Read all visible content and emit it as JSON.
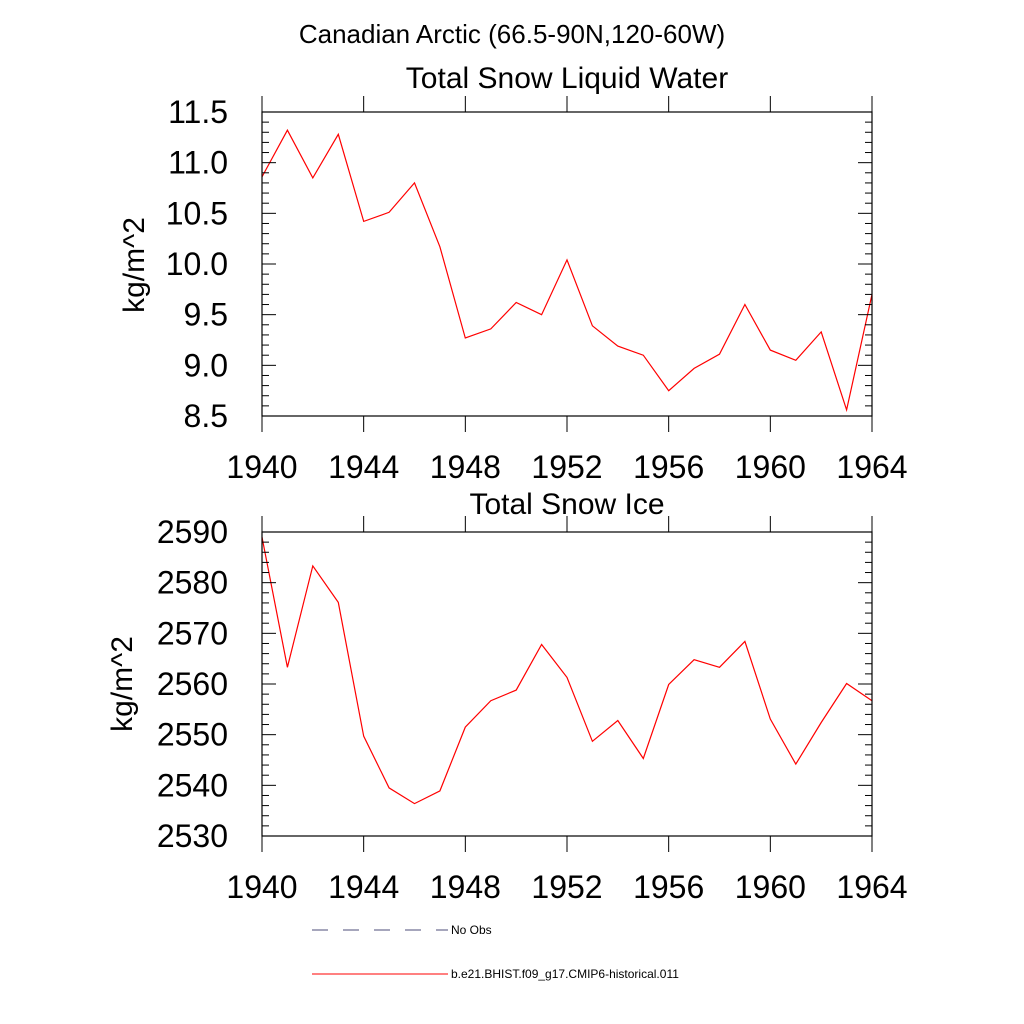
{
  "figure": {
    "title": "Canadian Arctic (66.5-90N,120-60W)"
  },
  "chart_data": [
    {
      "type": "line",
      "title": "Total Snow Liquid Water",
      "xlabel": "",
      "ylabel": "kg/m^2",
      "xlim": [
        1940,
        1964
      ],
      "ylim": [
        8.5,
        11.5
      ],
      "x_ticks": [
        1940,
        1944,
        1948,
        1952,
        1956,
        1960,
        1964
      ],
      "x_tick_labels": [
        "1940",
        "1944",
        "1948",
        "1952",
        "1956",
        "1960",
        "1964"
      ],
      "y_ticks": [
        8.5,
        9.0,
        9.5,
        10.0,
        10.5,
        11.0,
        11.5
      ],
      "y_tick_labels": [
        "8.5",
        "9.0",
        "9.5",
        "10.0",
        "10.5",
        "11.0",
        "11.5"
      ],
      "grid": false,
      "x": [
        1940,
        1941,
        1942,
        1943,
        1944,
        1945,
        1946,
        1947,
        1948,
        1949,
        1950,
        1951,
        1952,
        1953,
        1954,
        1955,
        1956,
        1957,
        1958,
        1959,
        1960,
        1961,
        1962,
        1963,
        1964
      ],
      "series": [
        {
          "color": "#ff0000",
          "values": [
            10.86,
            11.32,
            10.85,
            11.28,
            10.42,
            10.51,
            10.8,
            10.17,
            9.27,
            9.36,
            9.62,
            9.5,
            10.04,
            9.39,
            9.19,
            9.1,
            8.75,
            8.97,
            9.11,
            9.6,
            9.15,
            9.05,
            9.33,
            8.56,
            9.7
          ]
        }
      ]
    },
    {
      "type": "line",
      "title": "Total Snow Ice",
      "xlabel": "",
      "ylabel": "kg/m^2",
      "xlim": [
        1940,
        1964
      ],
      "ylim": [
        2530,
        2590
      ],
      "x_ticks": [
        1940,
        1944,
        1948,
        1952,
        1956,
        1960,
        1964
      ],
      "x_tick_labels": [
        "1940",
        "1944",
        "1948",
        "1952",
        "1956",
        "1960",
        "1964"
      ],
      "y_ticks": [
        2530,
        2540,
        2550,
        2560,
        2570,
        2580,
        2590
      ],
      "y_tick_labels": [
        "2530",
        "2540",
        "2550",
        "2560",
        "2570",
        "2580",
        "2590"
      ],
      "grid": false,
      "x": [
        1940,
        1941,
        1942,
        1943,
        1944,
        1945,
        1946,
        1947,
        1948,
        1949,
        1950,
        1951,
        1952,
        1953,
        1954,
        1955,
        1956,
        1957,
        1958,
        1959,
        1960,
        1961,
        1962,
        1963,
        1964
      ],
      "series": [
        {
          "color": "#ff0000",
          "values": [
            2589,
            2563.3,
            2583.3,
            2576.1,
            2549.7,
            2539.5,
            2536.4,
            2538.9,
            2551.5,
            2556.7,
            2558.8,
            2567.8,
            2561.3,
            2548.7,
            2552.8,
            2545.3,
            2559.9,
            2564.8,
            2563.3,
            2568.4,
            2553.1,
            2544.2,
            2552.4,
            2560.1,
            2556.7
          ]
        }
      ]
    }
  ],
  "legend": {
    "placement": "bottom",
    "items": [
      {
        "label": "No Obs",
        "style": "dashed",
        "color": "#4d4d7a"
      },
      {
        "label": "b.e21.BHIST.f09_g17.CMIP6-historical.011",
        "style": "solid",
        "color": "#ff0000"
      }
    ]
  }
}
